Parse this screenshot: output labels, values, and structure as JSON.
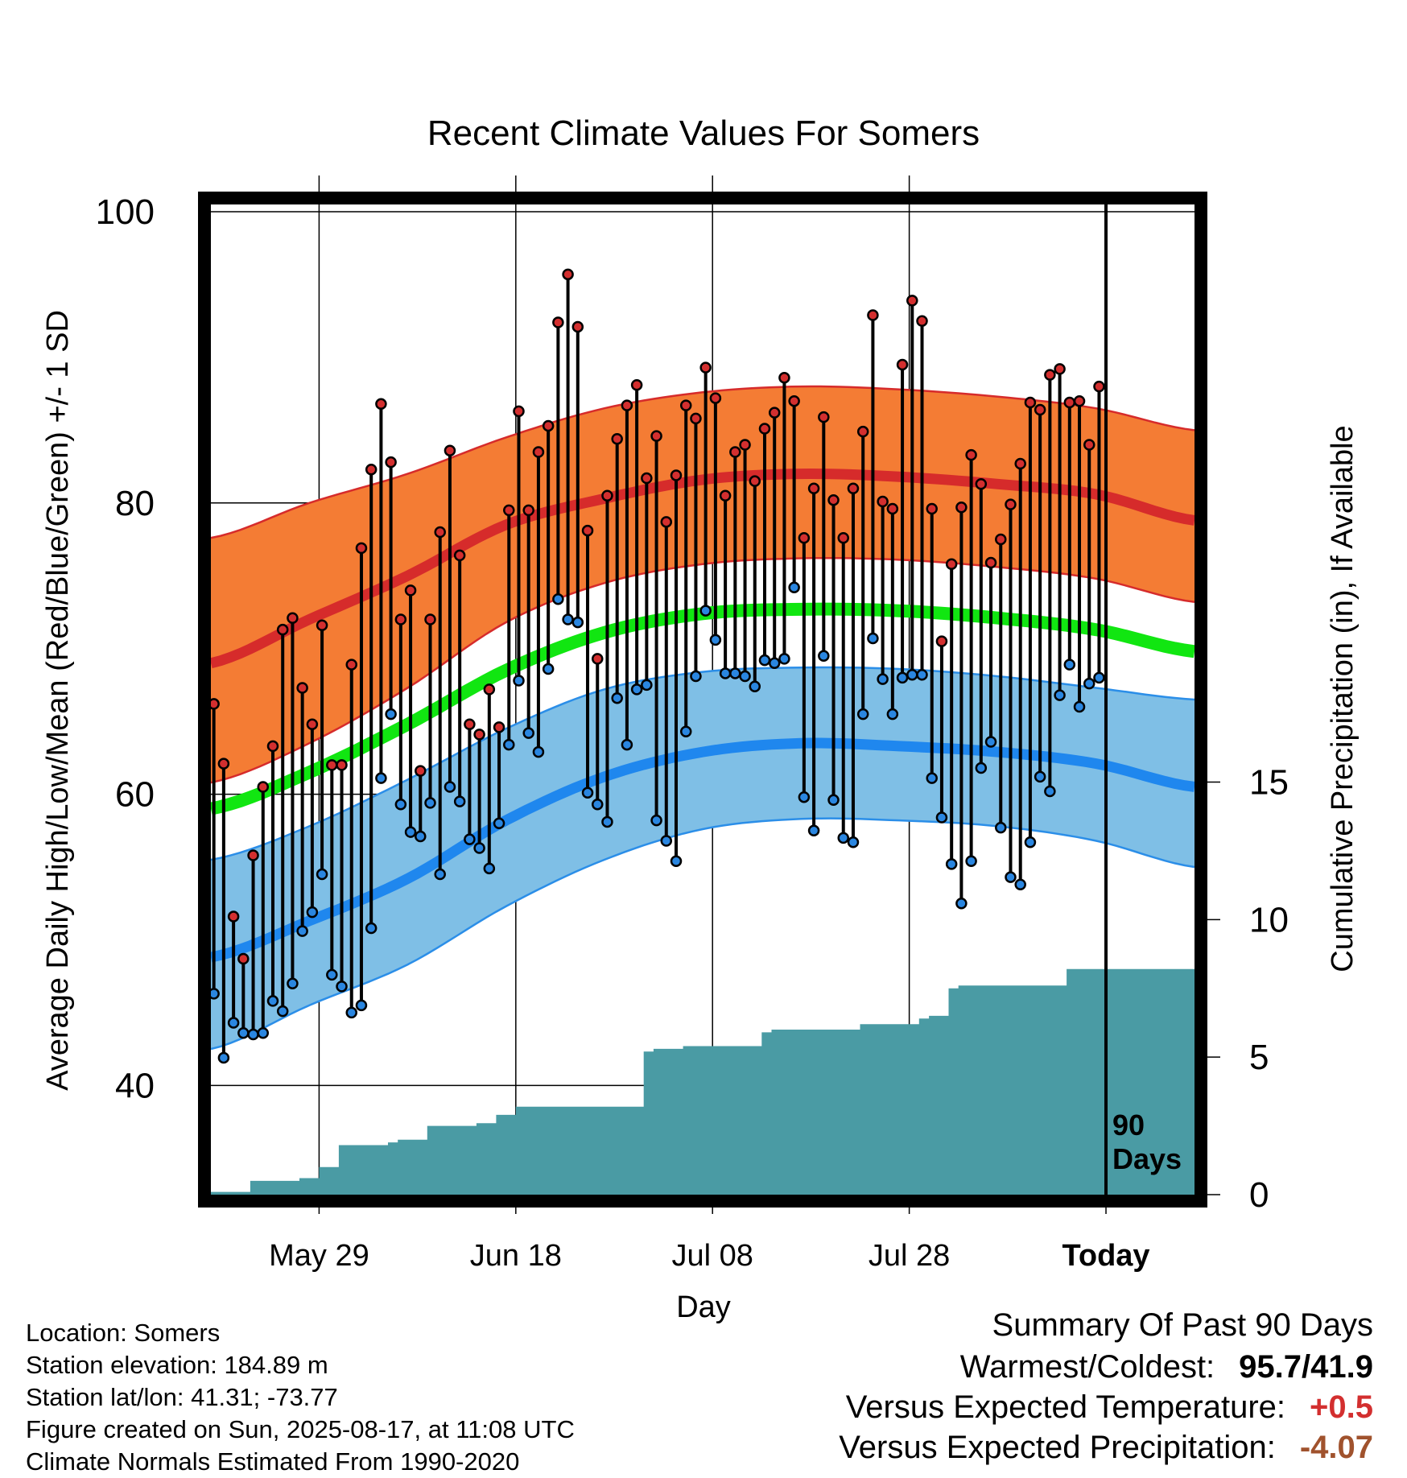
{
  "colors": {
    "high_band": "#f47c34",
    "high_band_edge": "#d62b2b",
    "high_mean": "#d62b2b",
    "low_band": "#7fbfe6",
    "low_band_edge": "#2b8ee8",
    "low_mean": "#1f87ee",
    "mean_line": "#11e611",
    "precip_fill": "#4a9ba4",
    "high_dot": "#d32f2f",
    "low_dot": "#2a86e0",
    "temp_anomaly": "#d32f2f",
    "precip_anomaly": "#a0522d"
  },
  "chart_data": {
    "type": "line",
    "title": "Recent Climate Values For Somers",
    "xlabel": "Day",
    "ylabel": "Average Daily High/Low/Mean (Red/Blue/Green) +/- 1 SD",
    "y2label": "Cumulative Precipitation (in), If Available",
    "ylim": [
      32.5,
      100.5
    ],
    "y_ticks": [
      40,
      60,
      80,
      100
    ],
    "y2_ticks": [
      0,
      5,
      10,
      15
    ],
    "y2lim": [
      0,
      36
    ],
    "x_tick_labels": [
      "May 29",
      "Jun 18",
      "Jul 08",
      "Jul 28",
      "Today"
    ],
    "x_tick_days": [
      11,
      31,
      51,
      71,
      91
    ],
    "x_range_days": [
      0,
      100
    ],
    "today_marker": {
      "day": 91,
      "label_line1": "90",
      "label_line2": "Days"
    },
    "grid": true,
    "normals": {
      "note": "x in days from May 18; values in degF",
      "days": [
        0,
        10,
        20,
        30,
        40,
        50,
        60,
        70,
        80,
        90,
        100
      ],
      "high_mean": [
        69,
        72,
        75,
        78.5,
        80.3,
        81.6,
        82,
        81.8,
        81.3,
        80.6,
        78.8
      ],
      "high_upper": [
        77.6,
        80,
        82,
        84.5,
        86.5,
        87.6,
        88,
        87.8,
        87.3,
        86.5,
        85
      ],
      "high_lower": [
        60.8,
        63.5,
        67.3,
        71.8,
        74.5,
        75.8,
        76.2,
        76.1,
        75.6,
        74.8,
        73.2
      ],
      "mean": [
        59,
        61.5,
        64.8,
        68.5,
        71.1,
        72.4,
        72.7,
        72.6,
        72.1,
        71.3,
        69.8
      ],
      "low_mean": [
        48.8,
        51.3,
        54.2,
        58.2,
        61.2,
        62.9,
        63.5,
        63.3,
        62.9,
        62.1,
        60.5
      ],
      "low_upper": [
        55.5,
        57.8,
        61,
        64.5,
        67.2,
        68.4,
        68.7,
        68.6,
        68.1,
        67.3,
        66.5
      ],
      "low_lower": [
        42.5,
        45.5,
        48.3,
        52.3,
        55.5,
        57.6,
        58.3,
        58.2,
        57.8,
        56.8,
        55
      ]
    },
    "daily": {
      "days": [
        0,
        1,
        2,
        3,
        4,
        5,
        6,
        7,
        8,
        9,
        10,
        11,
        12,
        13,
        14,
        15,
        16,
        17,
        18,
        19,
        20,
        21,
        22,
        23,
        24,
        25,
        26,
        27,
        28,
        29,
        30,
        31,
        32,
        33,
        34,
        35,
        36,
        37,
        38,
        39,
        40,
        41,
        42,
        43,
        44,
        45,
        46,
        47,
        48,
        49,
        50,
        51,
        52,
        53,
        54,
        55,
        56,
        57,
        58,
        59,
        60,
        61,
        62,
        63,
        64,
        65,
        66,
        67,
        68,
        69,
        70,
        71,
        72,
        73,
        74,
        75,
        76,
        77,
        78,
        79,
        80,
        81,
        82,
        83,
        84,
        85,
        86,
        87,
        88,
        89,
        90
      ],
      "highs": [
        66.2,
        62.1,
        51.6,
        48.7,
        55.8,
        60.5,
        63.3,
        71.3,
        72.1,
        67.3,
        64.8,
        71.6,
        62.0,
        62.0,
        68.9,
        76.9,
        82.3,
        86.8,
        82.8,
        72.0,
        74.0,
        61.6,
        72.0,
        78.0,
        83.6,
        76.4,
        64.8,
        64.1,
        67.2,
        64.6,
        79.5,
        86.3,
        79.5,
        83.5,
        85.3,
        92.4,
        95.7,
        92.1,
        78.1,
        69.3,
        80.5,
        84.4,
        86.7,
        88.1,
        81.7,
        84.6,
        78.7,
        81.9,
        86.7,
        85.8,
        89.3,
        87.2,
        80.5,
        83.5,
        84.0,
        81.5,
        85.1,
        86.2,
        88.6,
        87.0,
        77.6,
        81.0,
        85.9,
        80.2,
        77.6,
        81.0,
        84.9,
        92.9,
        80.1,
        79.6,
        89.5,
        93.9,
        92.5,
        79.6,
        70.5,
        75.8,
        79.7,
        83.3,
        81.3,
        75.9,
        77.5,
        79.9,
        82.7,
        86.9,
        86.4,
        88.8,
        89.2,
        86.9,
        87.0,
        84.0,
        88.0
      ],
      "lows": [
        46.3,
        41.9,
        44.3,
        43.6,
        43.5,
        43.6,
        45.8,
        45.1,
        47.0,
        50.6,
        51.9,
        54.5,
        47.6,
        46.8,
        45.0,
        45.5,
        50.8,
        61.1,
        65.5,
        59.3,
        57.4,
        57.1,
        59.4,
        54.5,
        60.5,
        59.5,
        56.9,
        56.3,
        54.9,
        58.0,
        63.4,
        67.8,
        64.2,
        62.9,
        68.6,
        73.4,
        72.0,
        71.8,
        60.1,
        59.3,
        58.1,
        66.6,
        63.4,
        67.2,
        67.5,
        58.2,
        56.8,
        55.4,
        64.3,
        68.1,
        72.6,
        70.6,
        68.3,
        68.3,
        68.1,
        67.4,
        69.2,
        69.0,
        69.3,
        74.2,
        59.8,
        57.5,
        69.5,
        59.6,
        57.0,
        56.7,
        65.5,
        70.7,
        67.9,
        65.5,
        68.0,
        68.2,
        68.2,
        61.1,
        58.4,
        55.2,
        52.5,
        55.4,
        61.8,
        63.6,
        57.7,
        54.3,
        53.8,
        56.7,
        61.2,
        60.2,
        66.8,
        68.9,
        66.0,
        67.6,
        68.0
      ]
    },
    "cumulative_precip": {
      "days": [
        0,
        3,
        4,
        9,
        10,
        11,
        12,
        13,
        16,
        18,
        19,
        21,
        22,
        23,
        27,
        29,
        31,
        32,
        43,
        44,
        45,
        46,
        48,
        55,
        56,
        57,
        59,
        65,
        66,
        67,
        70,
        72,
        73,
        75,
        76,
        79,
        86,
        87,
        91,
        100
      ],
      "inches": [
        0.1,
        0.1,
        0.5,
        0.6,
        0.6,
        1.0,
        1.0,
        1.8,
        1.8,
        1.9,
        2.0,
        2.0,
        2.5,
        2.5,
        2.6,
        2.9,
        3.2,
        3.2,
        3.2,
        5.2,
        5.3,
        5.3,
        5.4,
        5.4,
        5.9,
        6.0,
        6.0,
        6.0,
        6.2,
        6.2,
        6.2,
        6.4,
        6.5,
        7.5,
        7.6,
        7.6,
        7.6,
        8.2,
        8.2,
        8.2
      ]
    }
  },
  "axis_labels": {
    "y_ticks": [
      "40",
      "60",
      "80",
      "100"
    ],
    "y2_ticks": [
      "0",
      "5",
      "10",
      "15"
    ]
  },
  "footer": {
    "location": "Location: Somers",
    "elevation": "Station elevation: 184.89 m",
    "latlon": "Station lat/lon: 41.31; -73.77",
    "created": "Figure created on Sun, 2025-08-17, at 11:08 UTC",
    "normals": "Climate Normals Estimated From 1990-2020"
  },
  "summary": {
    "heading": "Summary Of Past 90 Days",
    "warmest_label": "Warmest/Coldest:",
    "warmest_value": "95.7/41.9",
    "temp_label": "Versus Expected Temperature:",
    "temp_value": "+0.5",
    "precip_label": "Versus Expected Precipitation:",
    "precip_value": "-4.07"
  }
}
